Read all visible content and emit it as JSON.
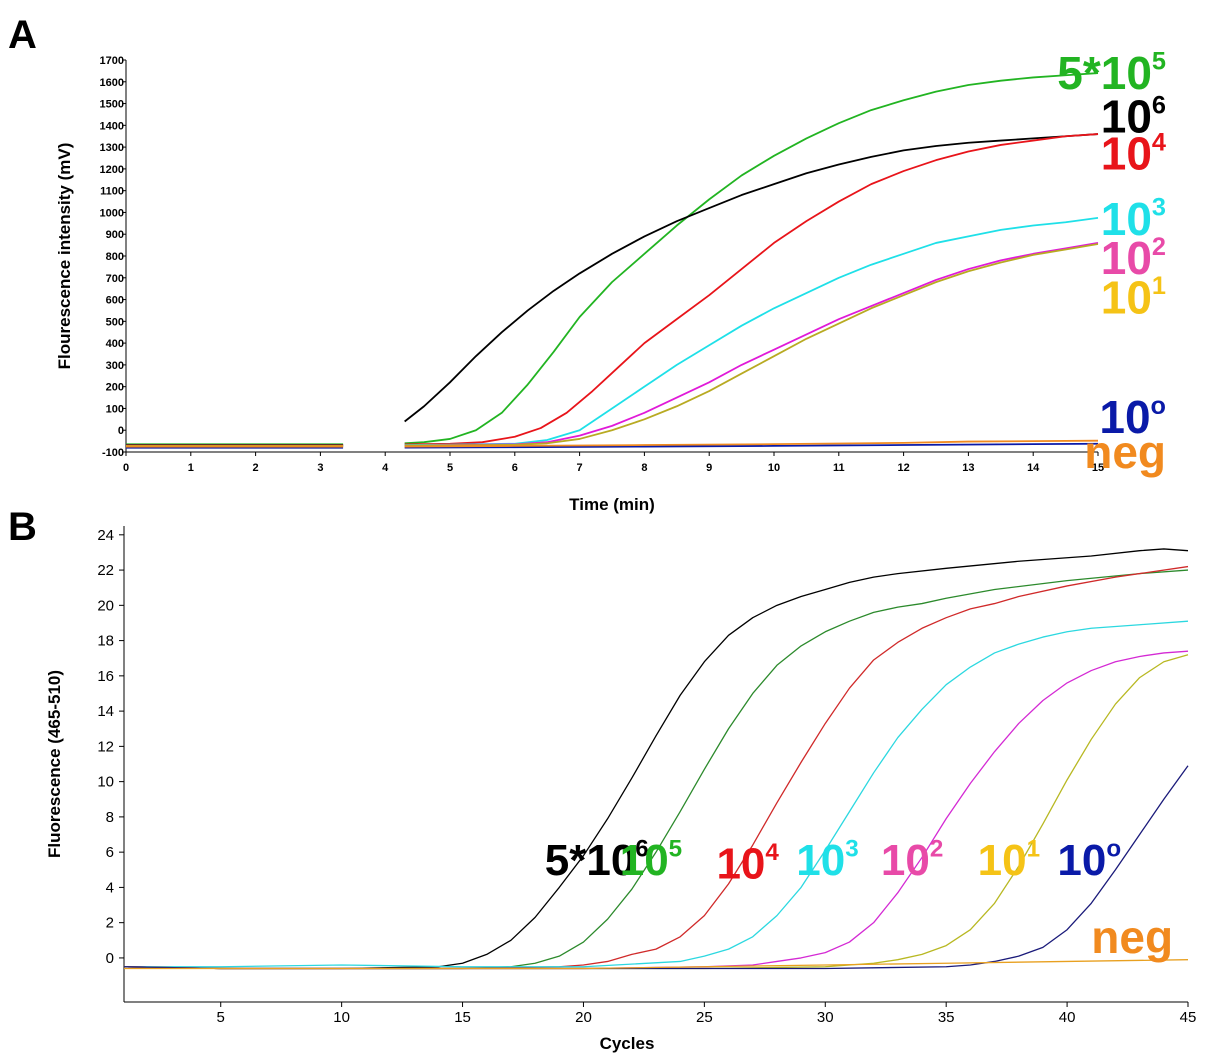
{
  "panels": {
    "a_letter": "A",
    "b_letter": "B"
  },
  "chart_data": [
    {
      "type": "line",
      "panel": "A",
      "xlabel": "Time (min)",
      "ylabel": "Flourescence intensity (mV)",
      "xlim": [
        0,
        15
      ],
      "ylim": [
        -100,
        1700
      ],
      "xticks": [
        "0",
        "1",
        "2",
        "3",
        "4",
        "5",
        "6",
        "7",
        "8",
        "9",
        "10",
        "11",
        "12",
        "13",
        "14",
        "15"
      ],
      "yticks": [
        "-100",
        "0",
        "100",
        "200",
        "300",
        "400",
        "500",
        "600",
        "700",
        "800",
        "900",
        "1000",
        "1100",
        "1200",
        "1300",
        "1400",
        "1500",
        "1600",
        "1700"
      ],
      "grid": false,
      "legend": "inline-right",
      "series": [
        {
          "name": "5*10^5",
          "label_main": "5*10",
          "label_sup": "5",
          "color": "#22b422",
          "pre": [
            [
              0,
              -65
            ],
            [
              3.35,
              -65
            ]
          ],
          "x": [
            4.3,
            4.6,
            5.0,
            5.4,
            5.8,
            6.2,
            6.6,
            7.0,
            7.5,
            8.0,
            8.5,
            9.0,
            9.5,
            10.0,
            10.5,
            11.0,
            11.5,
            12.0,
            12.5,
            13.0,
            13.5,
            14.0,
            14.5,
            15.0
          ],
          "y": [
            -60,
            -55,
            -40,
            0,
            80,
            210,
            360,
            520,
            680,
            810,
            940,
            1060,
            1170,
            1260,
            1340,
            1410,
            1470,
            1515,
            1555,
            1585,
            1605,
            1620,
            1630,
            1640
          ]
        },
        {
          "name": "10^6",
          "label_main": "10",
          "label_sup": "6",
          "color": "#000000",
          "pre": [
            [
              0,
              -68
            ],
            [
              3.35,
              -68
            ]
          ],
          "x": [
            4.3,
            4.6,
            5.0,
            5.4,
            5.8,
            6.2,
            6.6,
            7.0,
            7.5,
            8.0,
            8.5,
            9.0,
            9.5,
            10.0,
            10.5,
            11.0,
            11.5,
            12.0,
            12.5,
            13.0,
            13.5,
            14.0,
            14.5,
            15.0
          ],
          "y": [
            40,
            110,
            220,
            340,
            450,
            550,
            640,
            720,
            810,
            890,
            960,
            1020,
            1080,
            1130,
            1180,
            1220,
            1255,
            1285,
            1305,
            1320,
            1330,
            1340,
            1350,
            1360
          ]
        },
        {
          "name": "10^4",
          "label_main": "10",
          "label_sup": "4",
          "color": "#e8141a",
          "pre": [
            [
              0,
              -70
            ],
            [
              3.35,
              -70
            ]
          ],
          "x": [
            4.3,
            5.0,
            5.5,
            6.0,
            6.4,
            6.8,
            7.2,
            7.6,
            8.0,
            8.5,
            9.0,
            9.5,
            10.0,
            10.5,
            11.0,
            11.5,
            12.0,
            12.5,
            13.0,
            13.5,
            14.0,
            14.5,
            15.0
          ],
          "y": [
            -65,
            -62,
            -55,
            -30,
            10,
            80,
            180,
            290,
            400,
            510,
            620,
            740,
            860,
            960,
            1050,
            1130,
            1190,
            1240,
            1280,
            1310,
            1330,
            1350,
            1360
          ]
        },
        {
          "name": "10^3",
          "label_main": "10",
          "label_sup": "3",
          "color": "#1fe0e8",
          "pre": [
            [
              0,
              -72
            ],
            [
              3.35,
              -72
            ]
          ],
          "x": [
            4.3,
            5.0,
            6.0,
            6.5,
            7.0,
            7.5,
            8.0,
            8.5,
            9.0,
            9.5,
            10.0,
            10.5,
            11.0,
            11.5,
            12.0,
            12.5,
            13.0,
            13.5,
            14.0,
            14.5,
            15.0
          ],
          "y": [
            -68,
            -66,
            -62,
            -45,
            0,
            100,
            200,
            300,
            390,
            480,
            560,
            630,
            700,
            760,
            810,
            860,
            890,
            920,
            940,
            955,
            975
          ]
        },
        {
          "name": "10^2",
          "label_main": "10",
          "label_sup": "2",
          "color": "#e01ad8",
          "pre": [
            [
              0,
              -72
            ],
            [
              3.35,
              -72
            ]
          ],
          "x": [
            4.3,
            5.0,
            6.0,
            6.5,
            7.0,
            7.5,
            8.0,
            8.5,
            9.0,
            9.5,
            10.0,
            10.5,
            11.0,
            11.5,
            12.0,
            12.5,
            13.0,
            13.5,
            14.0,
            14.5,
            15.0
          ],
          "y": [
            -70,
            -68,
            -65,
            -55,
            -25,
            20,
            80,
            150,
            220,
            300,
            370,
            440,
            510,
            570,
            630,
            690,
            740,
            780,
            810,
            835,
            860
          ]
        },
        {
          "name": "10^1",
          "label_main": "10",
          "label_sup": "1",
          "color": "#b8aa22",
          "pre": [
            [
              0,
              -72
            ],
            [
              3.35,
              -72
            ]
          ],
          "x": [
            4.3,
            5.0,
            6.0,
            6.5,
            7.0,
            7.5,
            8.0,
            8.5,
            9.0,
            9.5,
            10.0,
            10.5,
            11.0,
            11.5,
            12.0,
            12.5,
            13.0,
            13.5,
            14.0,
            14.5,
            15.0
          ],
          "y": [
            -70,
            -69,
            -67,
            -60,
            -40,
            0,
            50,
            110,
            180,
            260,
            340,
            420,
            490,
            560,
            620,
            680,
            730,
            770,
            805,
            830,
            855
          ]
        },
        {
          "name": "10^0",
          "label_main": "10",
          "label_sup": "o",
          "color": "#0a1aa8",
          "pre": [
            [
              0,
              -80
            ],
            [
              3.35,
              -80
            ]
          ],
          "x": [
            4.3,
            6.0,
            8.0,
            10.0,
            12.0,
            14.0,
            15.0
          ],
          "y": [
            -80,
            -78,
            -75,
            -72,
            -68,
            -64,
            -62
          ]
        },
        {
          "name": "neg",
          "label_main": "neg",
          "label_sup": "",
          "color": "#f18a1f",
          "pre": [
            [
              0,
              -75
            ],
            [
              3.35,
              -75
            ]
          ],
          "x": [
            4.3,
            6.0,
            8.0,
            10.0,
            12.0,
            13.0,
            14.0,
            15.0
          ],
          "y": [
            -75,
            -72,
            -68,
            -64,
            -58,
            -52,
            -50,
            -48
          ]
        }
      ],
      "labels": [
        {
          "text": "5*10",
          "sup": "5",
          "color": "#22b422",
          "y": 1640
        },
        {
          "text": "10",
          "sup": "6",
          "color": "#000000",
          "y": 1440
        },
        {
          "text": "10",
          "sup": "4",
          "color": "#e8141a",
          "y": 1270
        },
        {
          "text": "10",
          "sup": "3",
          "color": "#1fe0e8",
          "y": 970
        },
        {
          "text": "10",
          "sup": "2",
          "color": "#e84aa8",
          "y": 790
        },
        {
          "text": "10",
          "sup": "1",
          "color": "#f5c316",
          "y": 610
        },
        {
          "text": "10",
          "sup": "o",
          "color": "#0a1aa8",
          "y": 60
        },
        {
          "text": "neg",
          "sup": "",
          "color": "#f18a1f",
          "y": -100
        }
      ]
    },
    {
      "type": "line",
      "panel": "B",
      "xlabel": "Cycles",
      "ylabel": "Fluorescence (465-510)",
      "xlim": [
        1,
        45
      ],
      "ylim": [
        -2.5,
        24.5
      ],
      "xticks": [
        "5",
        "10",
        "15",
        "20",
        "25",
        "30",
        "35",
        "40",
        "45"
      ],
      "yticks": [
        "0",
        "2",
        "4",
        "6",
        "8",
        "10",
        "12",
        "14",
        "16",
        "18",
        "20",
        "22",
        "24"
      ],
      "grid": false,
      "legend": "inline",
      "series": [
        {
          "name": "5*10^6",
          "color": "#000000",
          "x": [
            1,
            5,
            10,
            14,
            15,
            16,
            17,
            18,
            19,
            20,
            21,
            22,
            23,
            24,
            25,
            26,
            27,
            28,
            29,
            30,
            31,
            32,
            33,
            35,
            38,
            41,
            43,
            44,
            45
          ],
          "y": [
            -0.5,
            -0.6,
            -0.6,
            -0.5,
            -0.3,
            0.2,
            1.0,
            2.3,
            4.0,
            5.8,
            7.9,
            10.2,
            12.6,
            14.9,
            16.8,
            18.3,
            19.3,
            20.0,
            20.5,
            20.9,
            21.3,
            21.6,
            21.8,
            22.1,
            22.5,
            22.8,
            23.1,
            23.2,
            23.1
          ]
        },
        {
          "name": "10^5",
          "color": "#2c8a2c",
          "x": [
            1,
            5,
            10,
            15,
            17,
            18,
            19,
            20,
            21,
            22,
            23,
            24,
            25,
            26,
            27,
            28,
            29,
            30,
            31,
            32,
            33,
            34,
            35,
            37,
            40,
            43,
            45
          ],
          "y": [
            -0.5,
            -0.6,
            -0.6,
            -0.6,
            -0.5,
            -0.3,
            0.1,
            0.9,
            2.2,
            3.9,
            6.0,
            8.3,
            10.7,
            13.0,
            15.0,
            16.6,
            17.7,
            18.5,
            19.1,
            19.6,
            19.9,
            20.1,
            20.4,
            20.9,
            21.4,
            21.8,
            22.0
          ]
        },
        {
          "name": "10^4",
          "color": "#d02a2a",
          "x": [
            1,
            5,
            10,
            15,
            19,
            20,
            21,
            22,
            23,
            24,
            25,
            26,
            27,
            28,
            29,
            30,
            31,
            32,
            33,
            34,
            35,
            36,
            37,
            38,
            40,
            42,
            45
          ],
          "y": [
            -0.5,
            -0.6,
            -0.6,
            -0.6,
            -0.5,
            -0.4,
            -0.2,
            0.2,
            0.5,
            1.2,
            2.4,
            4.2,
            6.4,
            8.8,
            11.1,
            13.3,
            15.3,
            16.9,
            17.9,
            18.7,
            19.3,
            19.8,
            20.1,
            20.5,
            21.1,
            21.6,
            22.2
          ]
        },
        {
          "name": "10^3",
          "color": "#2cd8e0",
          "x": [
            1,
            5,
            10,
            15,
            20,
            24,
            25,
            26,
            27,
            28,
            29,
            30,
            31,
            32,
            33,
            34,
            35,
            36,
            37,
            38,
            39,
            40,
            41,
            42,
            43,
            45
          ],
          "y": [
            -0.5,
            -0.5,
            -0.4,
            -0.5,
            -0.5,
            -0.2,
            0.1,
            0.5,
            1.2,
            2.4,
            4.0,
            6.1,
            8.3,
            10.5,
            12.5,
            14.1,
            15.5,
            16.5,
            17.3,
            17.8,
            18.2,
            18.5,
            18.7,
            18.8,
            18.9,
            19.1
          ]
        },
        {
          "name": "10^2",
          "color": "#d42ad4",
          "x": [
            1,
            5,
            10,
            15,
            20,
            25,
            27,
            28,
            29,
            30,
            31,
            32,
            33,
            34,
            35,
            36,
            37,
            38,
            39,
            40,
            41,
            42,
            43,
            44,
            45
          ],
          "y": [
            -0.5,
            -0.6,
            -0.6,
            -0.6,
            -0.6,
            -0.5,
            -0.4,
            -0.2,
            0.0,
            0.3,
            0.9,
            2.0,
            3.7,
            5.7,
            7.9,
            9.9,
            11.7,
            13.3,
            14.6,
            15.6,
            16.3,
            16.8,
            17.1,
            17.3,
            17.4
          ]
        },
        {
          "name": "10^1",
          "color": "#b8b822",
          "x": [
            1,
            5,
            10,
            15,
            20,
            25,
            30,
            32,
            33,
            34,
            35,
            36,
            37,
            38,
            39,
            40,
            41,
            42,
            43,
            44,
            45
          ],
          "y": [
            -0.5,
            -0.6,
            -0.6,
            -0.6,
            -0.6,
            -0.6,
            -0.5,
            -0.3,
            -0.1,
            0.2,
            0.7,
            1.6,
            3.1,
            5.2,
            7.6,
            10.1,
            12.4,
            14.4,
            15.9,
            16.8,
            17.2
          ]
        },
        {
          "name": "10^0",
          "color": "#1a1a7a",
          "x": [
            1,
            5,
            10,
            15,
            20,
            25,
            30,
            35,
            36,
            37,
            38,
            39,
            40,
            41,
            42,
            43,
            44,
            45
          ],
          "y": [
            -0.5,
            -0.6,
            -0.6,
            -0.6,
            -0.6,
            -0.6,
            -0.6,
            -0.5,
            -0.4,
            -0.2,
            0.1,
            0.6,
            1.6,
            3.1,
            5.0,
            7.0,
            9.0,
            10.9
          ]
        },
        {
          "name": "neg",
          "color": "#e8a020",
          "x": [
            1,
            5,
            10,
            15,
            20,
            25,
            30,
            35,
            40,
            45
          ],
          "y": [
            -0.6,
            -0.6,
            -0.6,
            -0.6,
            -0.6,
            -0.5,
            -0.4,
            -0.3,
            -0.2,
            -0.1
          ]
        }
      ],
      "labels": [
        {
          "text": "5*10",
          "sup": "6",
          "color": "#000000",
          "cycle": 18.4,
          "y": 5.6
        },
        {
          "text": "10",
          "sup": "5",
          "color": "#22b422",
          "cycle": 21.5,
          "y": 5.6
        },
        {
          "text": "10",
          "sup": "4",
          "color": "#e8141a",
          "cycle": 25.5,
          "y": 5.4
        },
        {
          "text": "10",
          "sup": "3",
          "color": "#1fe0e8",
          "cycle": 28.8,
          "y": 5.6
        },
        {
          "text": "10",
          "sup": "2",
          "color": "#e84aa8",
          "cycle": 32.3,
          "y": 5.6
        },
        {
          "text": "10",
          "sup": "1",
          "color": "#f5c316",
          "cycle": 36.3,
          "y": 5.6
        },
        {
          "text": "10",
          "sup": "o",
          "color": "#0a1aa8",
          "cycle": 39.6,
          "y": 5.6
        },
        {
          "text": "neg",
          "sup": "",
          "color": "#f18a1f",
          "cycle": 41.0,
          "y": 1.2
        }
      ]
    }
  ]
}
